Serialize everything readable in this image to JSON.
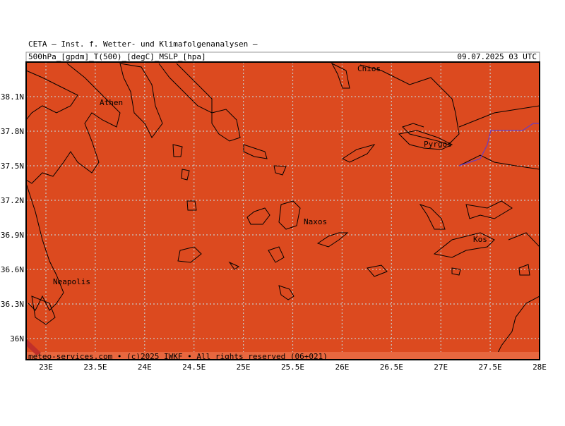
{
  "header": {
    "title": "CETA — Inst. f. Wetter- und Klimafolgenanalysen —",
    "variables": "500hPa_[gpdm]_T(500)_[degC]_MSLP_[hpa]",
    "datetime": "09.07.2025 03 UTC"
  },
  "map": {
    "lat_labels": [
      "38.1N",
      "37.8N",
      "37.5N",
      "37.2N",
      "36.9N",
      "36.6N",
      "36.3N",
      "36N"
    ],
    "lon_labels": [
      "23E",
      "23.5E",
      "24E",
      "24.5E",
      "25E",
      "25.5E",
      "26E",
      "26.5E",
      "27E",
      "27.5E",
      "28E"
    ],
    "places": [
      "Chios",
      "Athen",
      "Pyrgos",
      "Naxos",
      "Kos",
      "Neapolis"
    ]
  },
  "footer": "meteo-services.com • (c)2025 IWKF • All rights reserved (06+021)"
}
